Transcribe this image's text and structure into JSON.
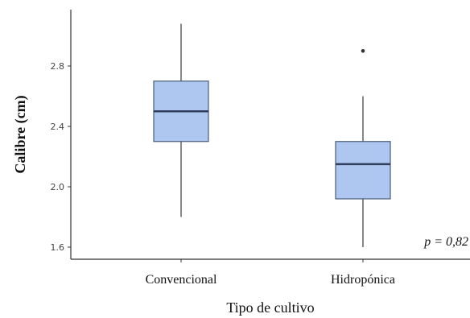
{
  "chart_data": {
    "type": "boxplot",
    "title": "",
    "xlabel": "Tipo de cultivo",
    "ylabel": "Calibre (cm)",
    "ylim": [
      1.55,
      3.1
    ],
    "yticks": [
      {
        "value": 1.6,
        "label": "1.6"
      },
      {
        "value": 2.0,
        "label": "2.0"
      },
      {
        "value": 2.4,
        "label": "2.4"
      },
      {
        "value": 2.8,
        "label": "2.8"
      }
    ],
    "categories": [
      "Convencional",
      "Hidropónica"
    ],
    "boxes": [
      {
        "category": "Convencional",
        "min": 1.8,
        "q1": 2.3,
        "median": 2.5,
        "q3": 2.7,
        "max": 3.08,
        "outliers": []
      },
      {
        "category": "Hidropónica",
        "min": 1.6,
        "q1": 1.92,
        "median": 2.15,
        "q3": 2.3,
        "max": 2.6,
        "outliers": [
          2.9
        ]
      }
    ],
    "annotation": "p = 0,82",
    "grid": false,
    "colors": {
      "box_fill": "#aec7f0",
      "box_stroke": "#4a5a78",
      "median": "#2f3f5c",
      "whisker": "#555555",
      "axis": "#333333"
    }
  }
}
